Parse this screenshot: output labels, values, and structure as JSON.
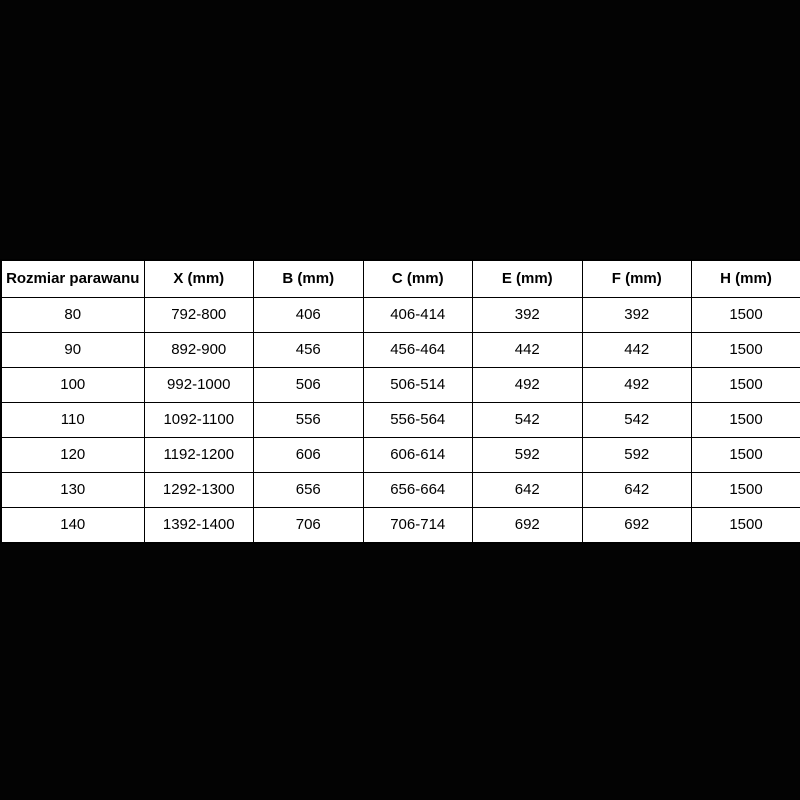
{
  "chart_data": {
    "type": "table",
    "title": "",
    "columns": [
      "Rozmiar parawanu",
      "X (mm)",
      "B (mm)",
      "C (mm)",
      "E (mm)",
      "F (mm)",
      "H (mm)"
    ],
    "rows": [
      [
        "80",
        "792-800",
        "406",
        "406-414",
        "392",
        "392",
        "1500"
      ],
      [
        "90",
        "892-900",
        "456",
        "456-464",
        "442",
        "442",
        "1500"
      ],
      [
        "100",
        "992-1000",
        "506",
        "506-514",
        "492",
        "492",
        "1500"
      ],
      [
        "110",
        "1092-1100",
        "556",
        "556-564",
        "542",
        "542",
        "1500"
      ],
      [
        "120",
        "1192-1200",
        "606",
        "606-614",
        "592",
        "592",
        "1500"
      ],
      [
        "130",
        "1292-1300",
        "656",
        "656-664",
        "642",
        "642",
        "1500"
      ],
      [
        "140",
        "1392-1400",
        "706",
        "706-714",
        "692",
        "692",
        "1500"
      ]
    ]
  },
  "table": {
    "headers": {
      "size": "Rozmiar parawanu",
      "x": "X (mm)",
      "b": "B (mm)",
      "c": "C (mm)",
      "e": "E (mm)",
      "f": "F (mm)",
      "h": "H (mm)"
    },
    "rows": [
      {
        "size": "80",
        "x": "792-800",
        "b": "406",
        "c": "406-414",
        "e": "392",
        "f": "392",
        "h": "1500"
      },
      {
        "size": "90",
        "x": "892-900",
        "b": "456",
        "c": "456-464",
        "e": "442",
        "f": "442",
        "h": "1500"
      },
      {
        "size": "100",
        "x": "992-1000",
        "b": "506",
        "c": "506-514",
        "e": "492",
        "f": "492",
        "h": "1500"
      },
      {
        "size": "110",
        "x": "1092-1100",
        "b": "556",
        "c": "556-564",
        "e": "542",
        "f": "542",
        "h": "1500"
      },
      {
        "size": "120",
        "x": "1192-1200",
        "b": "606",
        "c": "606-614",
        "e": "592",
        "f": "592",
        "h": "1500"
      },
      {
        "size": "130",
        "x": "1292-1300",
        "b": "656",
        "c": "656-664",
        "e": "642",
        "f": "642",
        "h": "1500"
      },
      {
        "size": "140",
        "x": "1392-1400",
        "b": "706",
        "c": "706-714",
        "e": "692",
        "f": "692",
        "h": "1500"
      }
    ]
  },
  "colors": {
    "page_background": "#030303",
    "cell_background": "#ffffff",
    "border": "#000000",
    "text": "#000000"
  }
}
